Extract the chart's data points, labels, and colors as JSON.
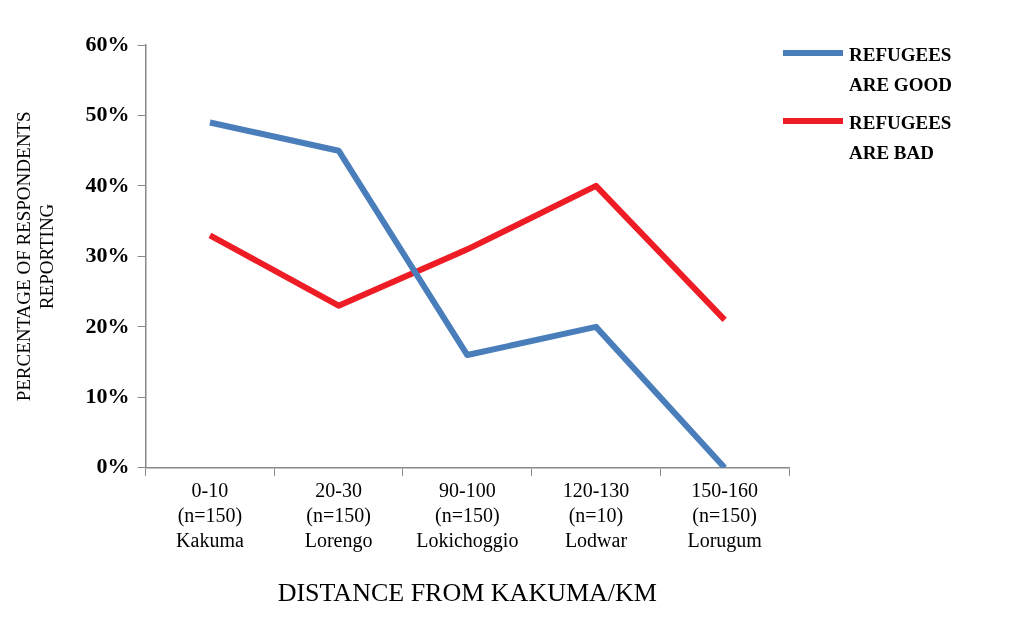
{
  "chart_data": {
    "type": "line",
    "xlabel": "DISTANCE FROM KAKUMA/KM",
    "ylabel": "PERCENTAGE OF RESPONDENTS\nREPORTING",
    "categories": [
      "0-10\n(n=150)\nKakuma",
      "20-30\n(n=150)\nLorengo",
      "90-100\n(n=150)\nLokichoggio",
      "120-130\n(n=10)\nLodwar",
      "150-160\n(n=150)\nLorugum"
    ],
    "series": [
      {
        "name": "REFUGEES ARE GOOD",
        "color": "#4a7ebb",
        "values": [
          49,
          45,
          16,
          20,
          0
        ]
      },
      {
        "name": "REFUGEES ARE BAD",
        "color": "#ee1c25",
        "values": [
          33,
          23,
          31,
          40,
          21
        ]
      }
    ],
    "ylim": [
      0,
      60
    ],
    "yticks": [
      {
        "value": 0,
        "label": "0%"
      },
      {
        "value": 10,
        "label": "10%"
      },
      {
        "value": 20,
        "label": "20%"
      },
      {
        "value": 30,
        "label": "30%"
      },
      {
        "value": 40,
        "label": "40%"
      },
      {
        "value": 50,
        "label": "50%"
      },
      {
        "value": 60,
        "label": "60%"
      }
    ],
    "grid": false,
    "legend": "top right",
    "marker": "none",
    "line_style": "solid"
  }
}
